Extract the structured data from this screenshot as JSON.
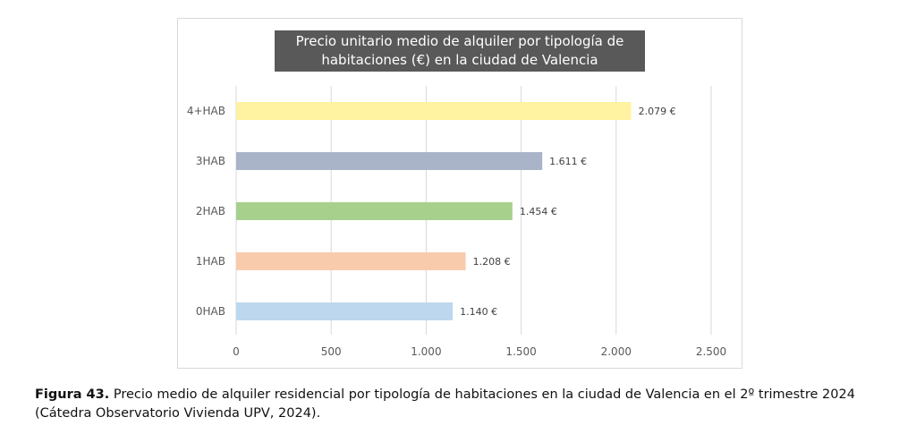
{
  "chart_data": {
    "type": "bar",
    "orientation": "horizontal",
    "title": "Precio unitario medio de alquiler por tipología de habitaciones (€) en la ciudad de Valencia",
    "title_lines": [
      "Precio unitario medio de alquiler por tipología de",
      "habitaciones (€) en la ciudad de Valencia"
    ],
    "categories": [
      "4+HAB",
      "3HAB",
      "2HAB",
      "1HAB",
      "0HAB"
    ],
    "values": [
      2079,
      1611,
      1454,
      1208,
      1140
    ],
    "value_labels": [
      "2.079 €",
      "1.611 €",
      "1.454 €",
      "1.208 €",
      "1.140 €"
    ],
    "colors": [
      "#fff2a0",
      "#a9b4c8",
      "#a8d08d",
      "#f8cbad",
      "#bdd7ee"
    ],
    "xlim": [
      0,
      2500
    ],
    "xticks": [
      0,
      500,
      1000,
      1500,
      2000,
      2500
    ],
    "xtick_labels": [
      "0",
      "500",
      "1.000",
      "1.500",
      "2.000",
      "2.500"
    ],
    "grid": true,
    "xlabel": "",
    "ylabel": ""
  },
  "caption": {
    "label": "Figura 43.",
    "text": " Precio medio de alquiler residencial  por tipología de habitaciones en la ciudad de Valencia en el 2º trimestre 2024 (Cátedra Observatorio Vivienda UPV, 2024)."
  }
}
